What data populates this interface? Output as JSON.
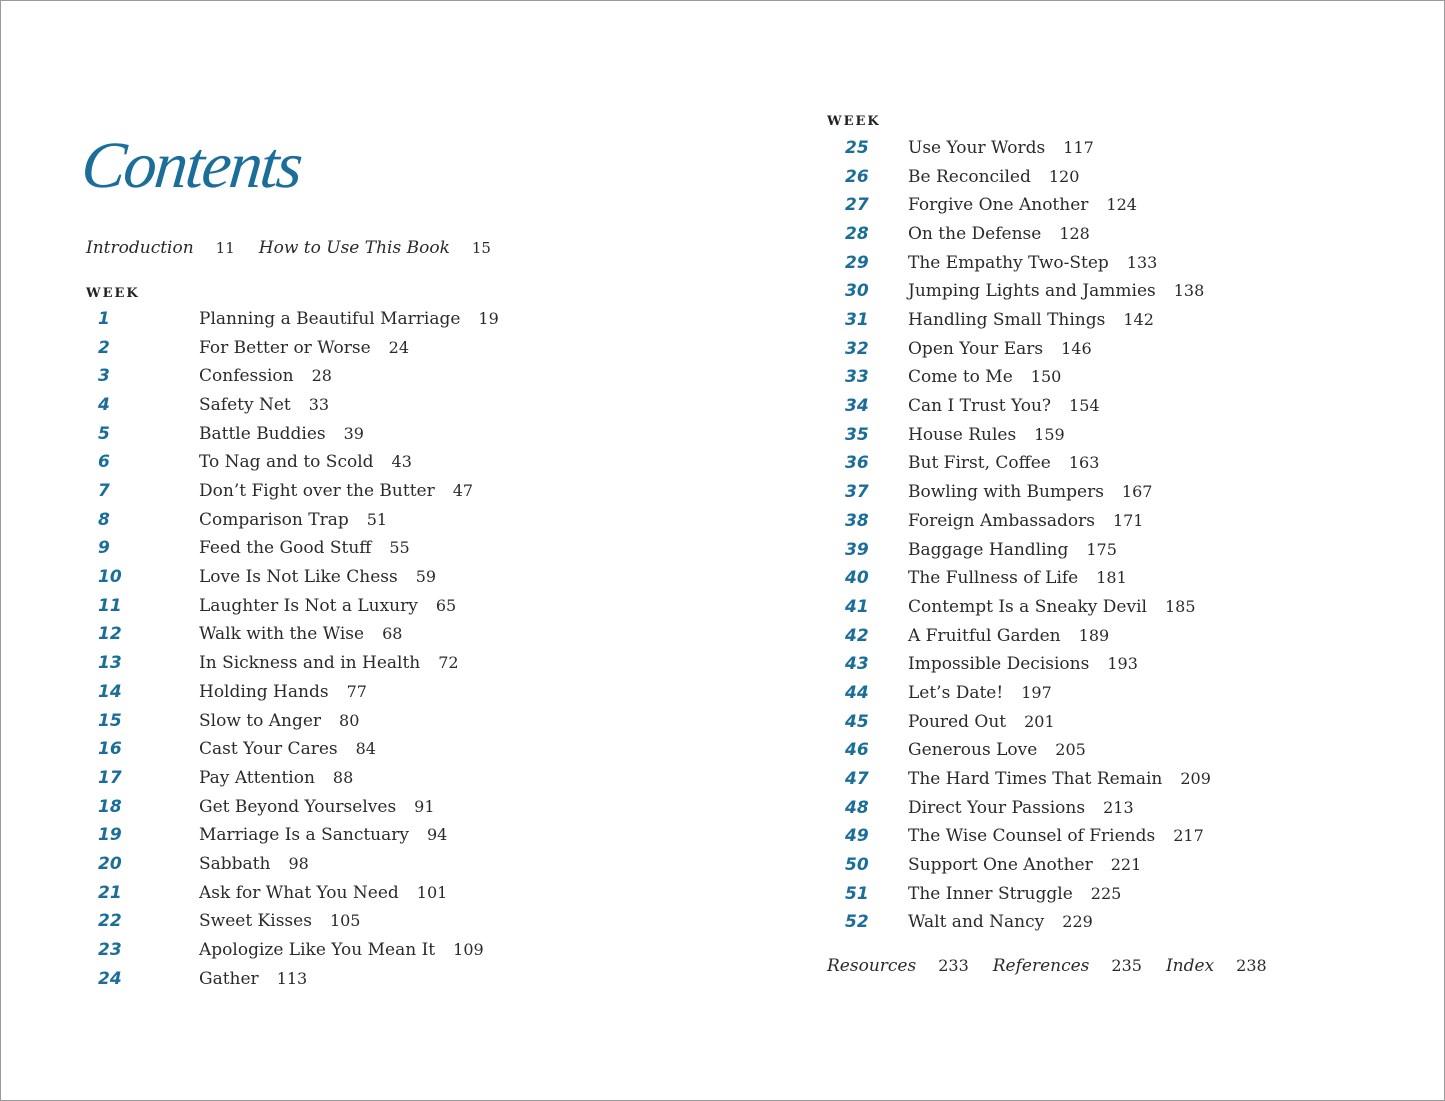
{
  "title": "Contents",
  "front_matter": [
    {
      "label": "Introduction",
      "page": "11"
    },
    {
      "label": "How to Use This Book",
      "page": "15"
    }
  ],
  "week_label": "WEEK",
  "left_weeks": [
    {
      "n": "1",
      "t": "Planning a Beautiful Marriage",
      "p": "19"
    },
    {
      "n": "2",
      "t": "For Better or Worse",
      "p": "24"
    },
    {
      "n": "3",
      "t": "Confession",
      "p": "28"
    },
    {
      "n": "4",
      "t": "Safety Net",
      "p": "33"
    },
    {
      "n": "5",
      "t": "Battle Buddies",
      "p": "39"
    },
    {
      "n": "6",
      "t": "To Nag and to Scold",
      "p": "43"
    },
    {
      "n": "7",
      "t": "Don’t Fight over the Butter",
      "p": "47"
    },
    {
      "n": "8",
      "t": "Comparison Trap",
      "p": "51"
    },
    {
      "n": "9",
      "t": "Feed the Good Stuff",
      "p": "55"
    },
    {
      "n": "10",
      "t": "Love Is Not Like Chess",
      "p": "59"
    },
    {
      "n": "11",
      "t": "Laughter Is Not a Luxury",
      "p": "65"
    },
    {
      "n": "12",
      "t": "Walk with the Wise",
      "p": "68"
    },
    {
      "n": "13",
      "t": "In Sickness and in Health",
      "p": "72"
    },
    {
      "n": "14",
      "t": "Holding Hands",
      "p": "77"
    },
    {
      "n": "15",
      "t": "Slow to Anger",
      "p": "80"
    },
    {
      "n": "16",
      "t": "Cast Your Cares",
      "p": "84"
    },
    {
      "n": "17",
      "t": "Pay Attention",
      "p": "88"
    },
    {
      "n": "18",
      "t": "Get Beyond Yourselves",
      "p": "91"
    },
    {
      "n": "19",
      "t": "Marriage Is a Sanctuary",
      "p": "94"
    },
    {
      "n": "20",
      "t": "Sabbath",
      "p": "98"
    },
    {
      "n": "21",
      "t": "Ask for What You Need",
      "p": "101"
    },
    {
      "n": "22",
      "t": "Sweet Kisses",
      "p": "105"
    },
    {
      "n": "23",
      "t": "Apologize Like You Mean It",
      "p": "109"
    },
    {
      "n": "24",
      "t": "Gather",
      "p": "113"
    }
  ],
  "right_weeks": [
    {
      "n": "25",
      "t": "Use Your Words",
      "p": "117"
    },
    {
      "n": "26",
      "t": "Be Reconciled",
      "p": "120"
    },
    {
      "n": "27",
      "t": "Forgive One Another",
      "p": "124"
    },
    {
      "n": "28",
      "t": "On the Defense",
      "p": "128"
    },
    {
      "n": "29",
      "t": "The Empathy Two-Step",
      "p": "133"
    },
    {
      "n": "30",
      "t": "Jumping Lights and Jammies",
      "p": "138"
    },
    {
      "n": "31",
      "t": "Handling Small Things",
      "p": "142"
    },
    {
      "n": "32",
      "t": "Open Your Ears",
      "p": "146"
    },
    {
      "n": "33",
      "t": "Come to Me",
      "p": "150"
    },
    {
      "n": "34",
      "t": "Can I Trust You?",
      "p": "154"
    },
    {
      "n": "35",
      "t": "House Rules",
      "p": "159"
    },
    {
      "n": "36",
      "t": "But First, Coffee",
      "p": "163"
    },
    {
      "n": "37",
      "t": "Bowling with Bumpers",
      "p": "167"
    },
    {
      "n": "38",
      "t": "Foreign Ambassadors",
      "p": "171"
    },
    {
      "n": "39",
      "t": "Baggage Handling",
      "p": "175"
    },
    {
      "n": "40",
      "t": "The Fullness of Life",
      "p": "181"
    },
    {
      "n": "41",
      "t": "Contempt Is a Sneaky Devil",
      "p": "185"
    },
    {
      "n": "42",
      "t": "A Fruitful Garden",
      "p": "189"
    },
    {
      "n": "43",
      "t": "Impossible Decisions",
      "p": "193"
    },
    {
      "n": "44",
      "t": "Let’s Date!",
      "p": "197"
    },
    {
      "n": "45",
      "t": "Poured Out",
      "p": "201"
    },
    {
      "n": "46",
      "t": "Generous Love",
      "p": "205"
    },
    {
      "n": "47",
      "t": "The Hard Times That Remain",
      "p": "209"
    },
    {
      "n": "48",
      "t": "Direct Your Passions",
      "p": "213"
    },
    {
      "n": "49",
      "t": "The Wise Counsel of Friends",
      "p": "217"
    },
    {
      "n": "50",
      "t": "Support One Another",
      "p": "221"
    },
    {
      "n": "51",
      "t": "The Inner Struggle",
      "p": "225"
    },
    {
      "n": "52",
      "t": "Walt and Nancy",
      "p": "229"
    }
  ],
  "back_matter": [
    {
      "label": "Resources",
      "page": "233"
    },
    {
      "label": "References",
      "page": "235"
    },
    {
      "label": "Index",
      "page": "238"
    }
  ],
  "colors": {
    "accent": "#1a6e99",
    "text": "#2a2a2a"
  }
}
